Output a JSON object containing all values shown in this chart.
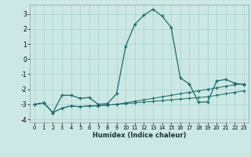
{
  "x": [
    0,
    1,
    2,
    3,
    4,
    5,
    6,
    7,
    8,
    9,
    10,
    11,
    12,
    13,
    14,
    15,
    16,
    17,
    18,
    19,
    20,
    21,
    22,
    23
  ],
  "line1": [
    -3.0,
    -2.9,
    -3.55,
    -3.25,
    -3.1,
    -3.15,
    -3.1,
    -3.1,
    -3.05,
    -3.0,
    -2.9,
    -2.8,
    -2.7,
    -2.6,
    -2.5,
    -2.4,
    -2.3,
    -2.2,
    -2.1,
    -2.0,
    -1.9,
    -1.8,
    -1.7,
    -1.65
  ],
  "line2": [
    -3.0,
    -2.9,
    -3.55,
    -3.25,
    -3.1,
    -3.15,
    -3.1,
    -3.1,
    -3.05,
    -3.0,
    -2.95,
    -2.9,
    -2.85,
    -2.8,
    -2.75,
    -2.7,
    -2.65,
    -2.6,
    -2.55,
    -2.5,
    -2.4,
    -2.3,
    -2.2,
    -2.1
  ],
  "line3": [
    -3.0,
    -2.9,
    -3.55,
    -2.4,
    -2.4,
    -2.6,
    -2.55,
    -3.0,
    -2.95,
    -2.3,
    0.85,
    2.3,
    2.9,
    3.3,
    2.85,
    2.1,
    -1.25,
    -1.65,
    -2.85,
    -2.85,
    -1.45,
    -1.35,
    -1.6,
    -1.7
  ],
  "bg_color": "#cce8e4",
  "grid_color": "#aed4d0",
  "line_color": "#1a6b6b",
  "xlabel": "Humidex (Indice chaleur)",
  "xlim": [
    -0.5,
    23.5
  ],
  "ylim": [
    -4.2,
    3.6
  ],
  "yticks": [
    -4,
    -3,
    -2,
    -1,
    0,
    1,
    2,
    3
  ],
  "xticks": [
    0,
    1,
    2,
    3,
    4,
    5,
    6,
    7,
    8,
    9,
    10,
    11,
    12,
    13,
    14,
    15,
    16,
    17,
    18,
    19,
    20,
    21,
    22,
    23
  ]
}
